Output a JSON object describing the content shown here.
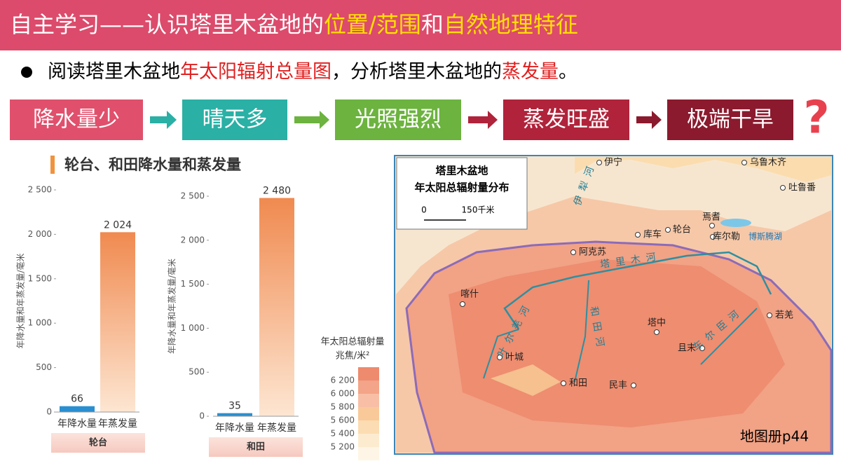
{
  "header": {
    "title": [
      "自主学习——认识塔里木盆地的",
      "位置/范围",
      "和",
      "自然地理特征"
    ]
  },
  "bullet": [
    "阅读塔里木盆地",
    "年太阳辐射总量图",
    "，分析塔里木盆地的",
    "蒸发量",
    "。"
  ],
  "flow": [
    "降水量少",
    "晴天多",
    "光照强烈",
    "蒸发旺盛",
    "极端干旱"
  ],
  "question": "?",
  "chart_title": "轮台、和田降水量和蒸发量",
  "charts": [
    {
      "type": "bar",
      "ylabel": "年降水量和年蒸发量/毫米",
      "categories": [
        "年降水量",
        "年蒸发量"
      ],
      "values": [
        66,
        2024
      ],
      "value_labels": [
        "66",
        "2 024"
      ],
      "ylim": [
        0,
        2500
      ],
      "yticks": [
        0,
        500,
        {
          "value": 1000,
          "label": "1 000"
        },
        {
          "value": 1500,
          "label": "1 500"
        },
        {
          "value": 2000,
          "label": "2 000"
        },
        {
          "value": 2500,
          "label": "2 500"
        }
      ],
      "station": "轮台"
    },
    {
      "type": "bar",
      "ylabel": "年降水量和年蒸发量/毫米",
      "categories": [
        "年降水量",
        "年蒸发量"
      ],
      "values": [
        35,
        2480
      ],
      "value_labels": [
        "35",
        "2 480"
      ],
      "ylim": [
        0,
        2500
      ],
      "yticks": [
        0,
        500,
        {
          "value": 1000,
          "label": "1 000"
        },
        {
          "value": 1500,
          "label": "1 500"
        },
        {
          "value": 2000,
          "label": "2 000"
        },
        {
          "value": 2500,
          "label": "2 500"
        }
      ],
      "station": "和田"
    }
  ],
  "legend": {
    "title": "年太阳总辐射量",
    "unit": "兆焦/米²",
    "levels": [
      "6 200",
      "6 000",
      "5 800",
      "5 600",
      "5 400",
      "5 200"
    ]
  },
  "map": {
    "title": [
      "塔里木盆地",
      "年太阳总辐射量分布"
    ],
    "scale": [
      "0",
      "150千米"
    ],
    "places": [
      "伊宁",
      "乌鲁木齐",
      "吐鲁番",
      "焉耆",
      "库车",
      "轮台",
      "库尔勒",
      "阿克苏",
      "喀什",
      "塔中",
      "若羌",
      "且末",
      "叶城",
      "和田",
      "民丰"
    ],
    "lake": "博斯腾湖",
    "rivers": [
      "伊犁河",
      "塔里木河",
      "叶尔羌河",
      "和田河",
      "车尔臣河"
    ]
  },
  "footer": "地图册p44"
}
